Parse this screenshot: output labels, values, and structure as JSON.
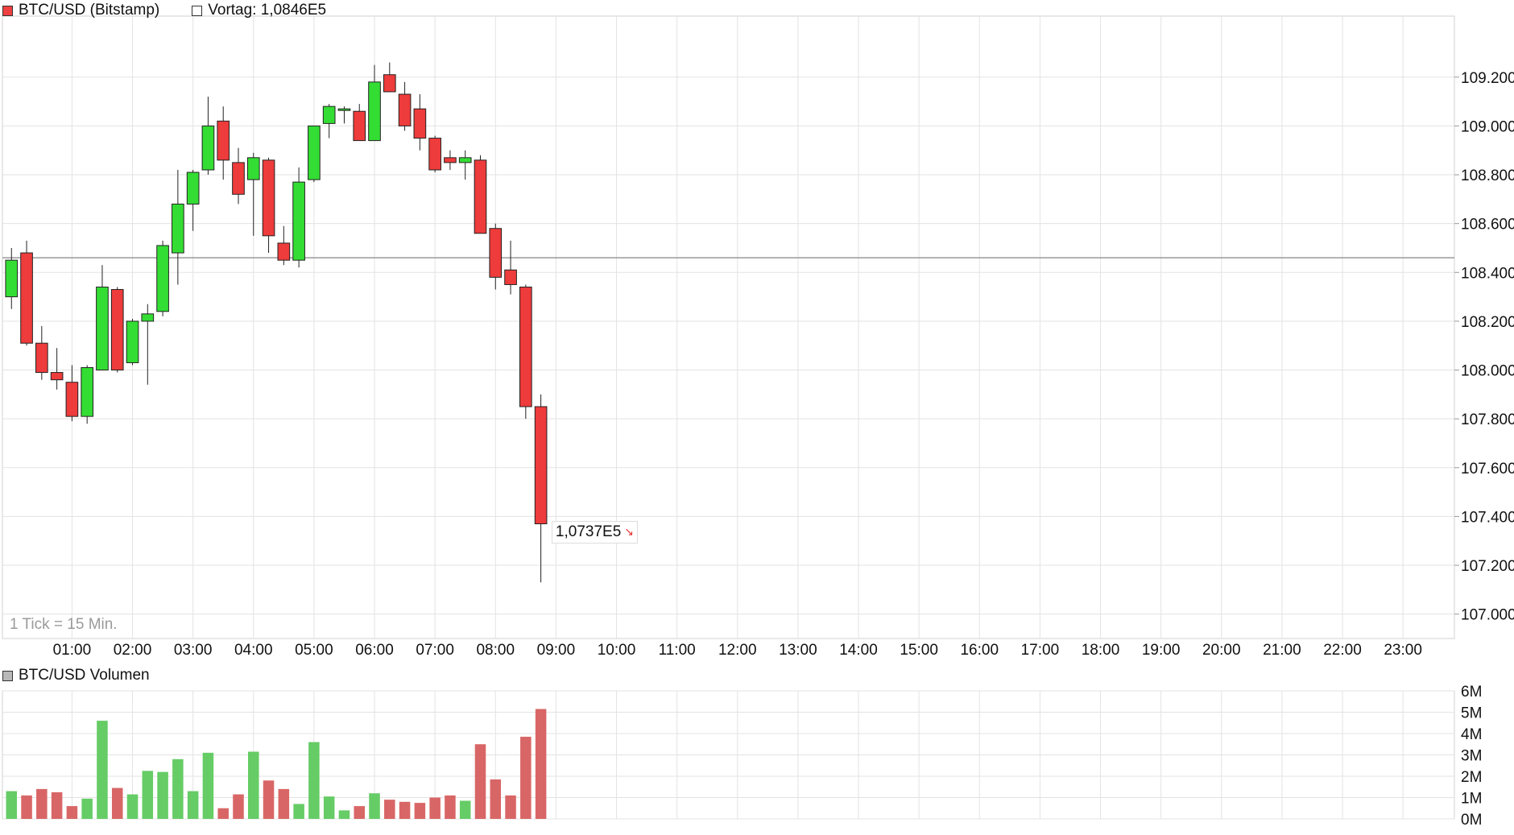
{
  "legend": {
    "main_label": "BTC/USD (Bitstamp)",
    "main_color": "#ee4040",
    "prev_label": "Vortag: 1,0846E5",
    "prev_color": "#ffffff",
    "volume_label": "BTC/USD Volumen",
    "volume_color": "#b8b8b8"
  },
  "tick_note": "1 Tick = 15 Min.",
  "last_price_label": "1,0737E5",
  "last_price_icon": "down-arrow-icon",
  "colors": {
    "up": "#33dd33",
    "down": "#ee3b3b",
    "vol_up": "#66cc66",
    "vol_down": "#d96666",
    "grid": "#e3e3e3",
    "prev_line": "#999999"
  },
  "chart_data": [
    {
      "type": "candlestick",
      "title": "BTC/USD (Bitstamp)",
      "interval_minutes": 15,
      "previous_close": 108460,
      "ylim": [
        106900,
        109450
      ],
      "y_ticks": [
        107000,
        107200,
        107400,
        107600,
        107800,
        108000,
        108200,
        108400,
        108600,
        108800,
        109000,
        109200
      ],
      "y_tick_labels": [
        "107.000",
        "107.200",
        "107.400",
        "107.600",
        "107.800",
        "108.000",
        "108.200",
        "108.400",
        "108.600",
        "108.800",
        "109.000",
        "109.200"
      ],
      "x_tick_labels": [
        "01:00",
        "02:00",
        "03:00",
        "04:00",
        "05:00",
        "06:00",
        "07:00",
        "08:00",
        "09:00",
        "10:00",
        "11:00",
        "12:00",
        "13:00",
        "14:00",
        "15:00",
        "16:00",
        "17:00",
        "18:00",
        "19:00",
        "20:00",
        "21:00",
        "22:00",
        "23:00"
      ],
      "x_range_hours": [
        -0.15,
        23.85
      ],
      "candles": [
        {
          "t": 0.0,
          "o": 108300,
          "h": 108500,
          "l": 108250,
          "c": 108450
        },
        {
          "t": 0.25,
          "o": 108480,
          "h": 108530,
          "l": 108100,
          "c": 108110
        },
        {
          "t": 0.5,
          "o": 108110,
          "h": 108180,
          "l": 107960,
          "c": 107990
        },
        {
          "t": 0.75,
          "o": 107990,
          "h": 108090,
          "l": 107920,
          "c": 107960
        },
        {
          "t": 1.0,
          "o": 107950,
          "h": 108020,
          "l": 107790,
          "c": 107810
        },
        {
          "t": 1.25,
          "o": 107810,
          "h": 108020,
          "l": 107780,
          "c": 108010
        },
        {
          "t": 1.5,
          "o": 108000,
          "h": 108430,
          "l": 108000,
          "c": 108340
        },
        {
          "t": 1.75,
          "o": 108330,
          "h": 108340,
          "l": 107990,
          "c": 108000
        },
        {
          "t": 2.0,
          "o": 108030,
          "h": 108210,
          "l": 108020,
          "c": 108200
        },
        {
          "t": 2.25,
          "o": 108200,
          "h": 108270,
          "l": 107940,
          "c": 108230
        },
        {
          "t": 2.5,
          "o": 108240,
          "h": 108530,
          "l": 108220,
          "c": 108510
        },
        {
          "t": 2.75,
          "o": 108480,
          "h": 108820,
          "l": 108350,
          "c": 108680
        },
        {
          "t": 3.0,
          "o": 108680,
          "h": 108820,
          "l": 108570,
          "c": 108810
        },
        {
          "t": 3.25,
          "o": 108820,
          "h": 109120,
          "l": 108800,
          "c": 109000
        },
        {
          "t": 3.5,
          "o": 109020,
          "h": 109080,
          "l": 108780,
          "c": 108860
        },
        {
          "t": 3.75,
          "o": 108850,
          "h": 108910,
          "l": 108680,
          "c": 108720
        },
        {
          "t": 4.0,
          "o": 108780,
          "h": 108890,
          "l": 108550,
          "c": 108870
        },
        {
          "t": 4.25,
          "o": 108860,
          "h": 108870,
          "l": 108480,
          "c": 108550
        },
        {
          "t": 4.5,
          "o": 108520,
          "h": 108590,
          "l": 108430,
          "c": 108450
        },
        {
          "t": 4.75,
          "o": 108450,
          "h": 108830,
          "l": 108420,
          "c": 108770
        },
        {
          "t": 5.0,
          "o": 108780,
          "h": 109000,
          "l": 108770,
          "c": 109000
        },
        {
          "t": 5.25,
          "o": 109010,
          "h": 109090,
          "l": 108950,
          "c": 109080
        },
        {
          "t": 5.5,
          "o": 109070,
          "h": 109080,
          "l": 109010,
          "c": 109070
        },
        {
          "t": 5.75,
          "o": 109060,
          "h": 109090,
          "l": 108940,
          "c": 108940
        },
        {
          "t": 6.0,
          "o": 108940,
          "h": 109250,
          "l": 108940,
          "c": 109180
        },
        {
          "t": 6.25,
          "o": 109210,
          "h": 109260,
          "l": 109140,
          "c": 109140
        },
        {
          "t": 6.5,
          "o": 109130,
          "h": 109180,
          "l": 108980,
          "c": 109000
        },
        {
          "t": 6.75,
          "o": 109070,
          "h": 109130,
          "l": 108900,
          "c": 108950
        },
        {
          "t": 7.0,
          "o": 108950,
          "h": 108960,
          "l": 108810,
          "c": 108820
        },
        {
          "t": 7.25,
          "o": 108870,
          "h": 108900,
          "l": 108820,
          "c": 108850
        },
        {
          "t": 7.5,
          "o": 108850,
          "h": 108900,
          "l": 108780,
          "c": 108870
        },
        {
          "t": 7.75,
          "o": 108860,
          "h": 108880,
          "l": 108560,
          "c": 108560
        },
        {
          "t": 8.0,
          "o": 108580,
          "h": 108600,
          "l": 108330,
          "c": 108380
        },
        {
          "t": 8.25,
          "o": 108410,
          "h": 108530,
          "l": 108310,
          "c": 108350
        },
        {
          "t": 8.5,
          "o": 108340,
          "h": 108350,
          "l": 107800,
          "c": 107850
        },
        {
          "t": 8.75,
          "o": 107850,
          "h": 107900,
          "l": 107130,
          "c": 107370
        }
      ]
    },
    {
      "type": "bar",
      "title": "BTC/USD Volumen",
      "ylim": [
        0,
        6
      ],
      "y_ticks": [
        0,
        1,
        2,
        3,
        4,
        5,
        6
      ],
      "y_tick_labels": [
        "0M",
        "1M",
        "2M",
        "3M",
        "4M",
        "5M",
        "6M"
      ],
      "unit": "M",
      "values": [
        1.3,
        1.1,
        1.4,
        1.25,
        0.6,
        0.95,
        4.6,
        1.45,
        1.15,
        2.25,
        2.2,
        2.8,
        1.3,
        3.1,
        0.5,
        1.15,
        3.15,
        1.8,
        1.4,
        0.7,
        3.6,
        1.05,
        0.4,
        0.6,
        1.2,
        0.9,
        0.8,
        0.75,
        1.0,
        1.1,
        0.85,
        3.5,
        1.85,
        1.1,
        3.85,
        5.15
      ]
    }
  ]
}
